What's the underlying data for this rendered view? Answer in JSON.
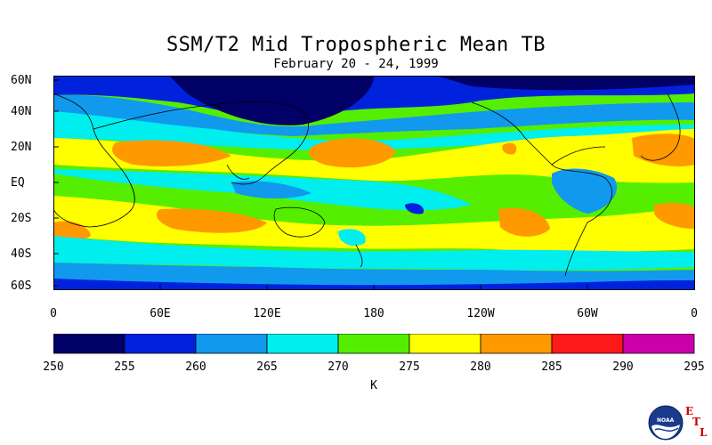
{
  "title": "SSM/T2 Mid Tropospheric Mean TB",
  "subtitle": "February 20 - 24, 1999",
  "lat_labels": [
    "60N",
    "40N",
    "20N",
    "EQ",
    "20S",
    "40S",
    "60S"
  ],
  "lon_labels": [
    "0",
    "60E",
    "120E",
    "180",
    "120W",
    "60W",
    "0"
  ],
  "colorbar": {
    "ticks": [
      "250",
      "255",
      "260",
      "265",
      "270",
      "275",
      "280",
      "285",
      "290",
      "295"
    ],
    "colors": [
      "#000066",
      "#0022dd",
      "#1199ee",
      "#00eeee",
      "#55ee00",
      "#ffff00",
      "#ff9900",
      "#ff1a1a",
      "#cc00aa"
    ],
    "unit": "K"
  },
  "logo": {
    "text": "NOAA",
    "etl": [
      "E",
      "T",
      "L"
    ]
  }
}
